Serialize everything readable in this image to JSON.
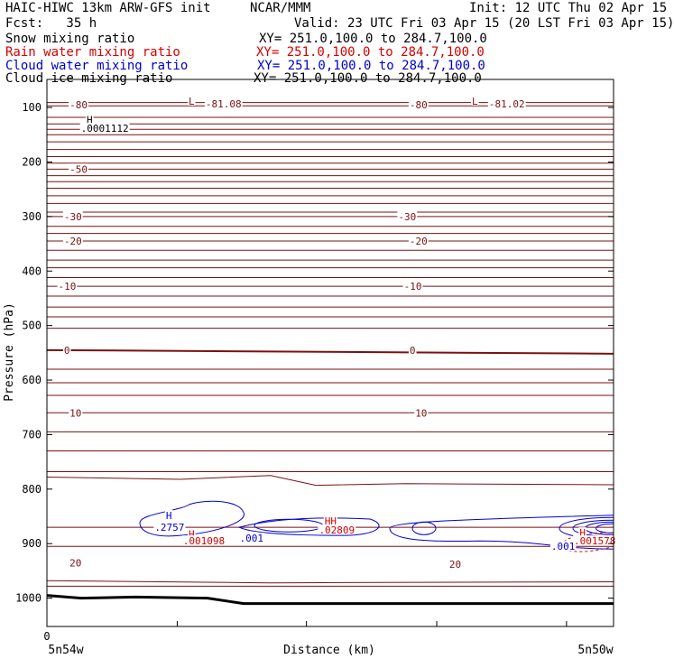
{
  "header": {
    "title_left": "HAIC-HIWC 13km ARW-GFS init",
    "center_org": "NCAR/MMM",
    "init": "Init: 12 UTC Thu 02 Apr 15",
    "fcst": "Fcst:   35 h",
    "valid": "Valid: 23 UTC Fri 03 Apr 15 (20 LST Fri 03 Apr 15)"
  },
  "legend": [
    {
      "label": "Snow mixing ratio",
      "xy": "XY= 251.0,100.0 to 284.7,100.0",
      "color": "#000000"
    },
    {
      "label": "Rain water mixing ratio",
      "xy": "XY= 251.0,100.0 to 284.7,100.0",
      "color": "#d40000"
    },
    {
      "label": "Cloud water mixing ratio",
      "xy": "XY= 251.0,100.0 to 284.7,100.0",
      "color": "#0000cc"
    },
    {
      "label": "Cloud ice mixing ratio",
      "xy": "XY= 251.0,100.0 to 284.7,100.0",
      "color": "#000000"
    }
  ],
  "chart_data": {
    "type": "line",
    "xlabel": "Distance (km)",
    "ylabel": "Pressure (hPa)",
    "yticks": [
      "100",
      "200",
      "300",
      "400",
      "500",
      "600",
      "700",
      "800",
      "900",
      "1000"
    ],
    "x_start_label": "0",
    "x_left_label": "5n54w",
    "x_right_label": "5n50w",
    "contour_color": "#7a1010",
    "temperature_labels": [
      {
        "text": "-80",
        "p": 95,
        "x": 0.04
      },
      {
        "text": "-80",
        "p": 95,
        "x": 0.64
      },
      {
        "text": "-81.08",
        "p": 93,
        "x": 0.28
      },
      {
        "text": "-81.02",
        "p": 93,
        "x": 0.78
      },
      {
        "text": "-50",
        "p": 213,
        "x": 0.04
      },
      {
        "text": "-30",
        "p": 300,
        "x": 0.03
      },
      {
        "text": "-30",
        "p": 300,
        "x": 0.62
      },
      {
        "text": "-20",
        "p": 345,
        "x": 0.03
      },
      {
        "text": "-20",
        "p": 345,
        "x": 0.64
      },
      {
        "text": "-10",
        "p": 428,
        "x": 0.02
      },
      {
        "text": "-10",
        "p": 428,
        "x": 0.63
      },
      {
        "text": "0",
        "p": 545,
        "x": 0.03
      },
      {
        "text": "0",
        "p": 545,
        "x": 0.64
      },
      {
        "text": "10",
        "p": 660,
        "x": 0.04
      },
      {
        "text": "10",
        "p": 660,
        "x": 0.65
      },
      {
        "text": "20",
        "p": 935,
        "x": 0.04
      },
      {
        "text": "20",
        "p": 938,
        "x": 0.71
      }
    ],
    "extrema_labels": [
      {
        "text": "L",
        "p": 88,
        "x": 0.25,
        "color": "#7a1010"
      },
      {
        "text": "L",
        "p": 88,
        "x": 0.75,
        "color": "#7a1010"
      },
      {
        "text": "H",
        "p": 122,
        "x": 0.07,
        "color": "#000000"
      },
      {
        "text": ".0001112",
        "p": 138,
        "x": 0.06,
        "color": "#000000"
      },
      {
        "text": "H",
        "p": 848,
        "x": 0.21,
        "color": "#0000cc"
      },
      {
        "text": ".2757",
        "p": 870,
        "x": 0.19,
        "color": "#0000cc"
      },
      {
        "text": ".001",
        "p": 890,
        "x": 0.34,
        "color": "#0000cc"
      },
      {
        "text": "H",
        "p": 882,
        "x": 0.25,
        "color": "#d40000"
      },
      {
        "text": ".001098",
        "p": 895,
        "x": 0.24,
        "color": "#d40000"
      },
      {
        "text": "HH",
        "p": 858,
        "x": 0.49,
        "color": "#d40000"
      },
      {
        "text": ".02809",
        "p": 875,
        "x": 0.48,
        "color": "#d40000"
      },
      {
        "text": ".001",
        "p": 905,
        "x": 0.89,
        "color": "#0000cc"
      },
      {
        "text": "H",
        "p": 880,
        "x": 0.94,
        "color": "#d40000"
      },
      {
        "text": ".001578",
        "p": 895,
        "x": 0.93,
        "color": "#d40000"
      }
    ]
  }
}
